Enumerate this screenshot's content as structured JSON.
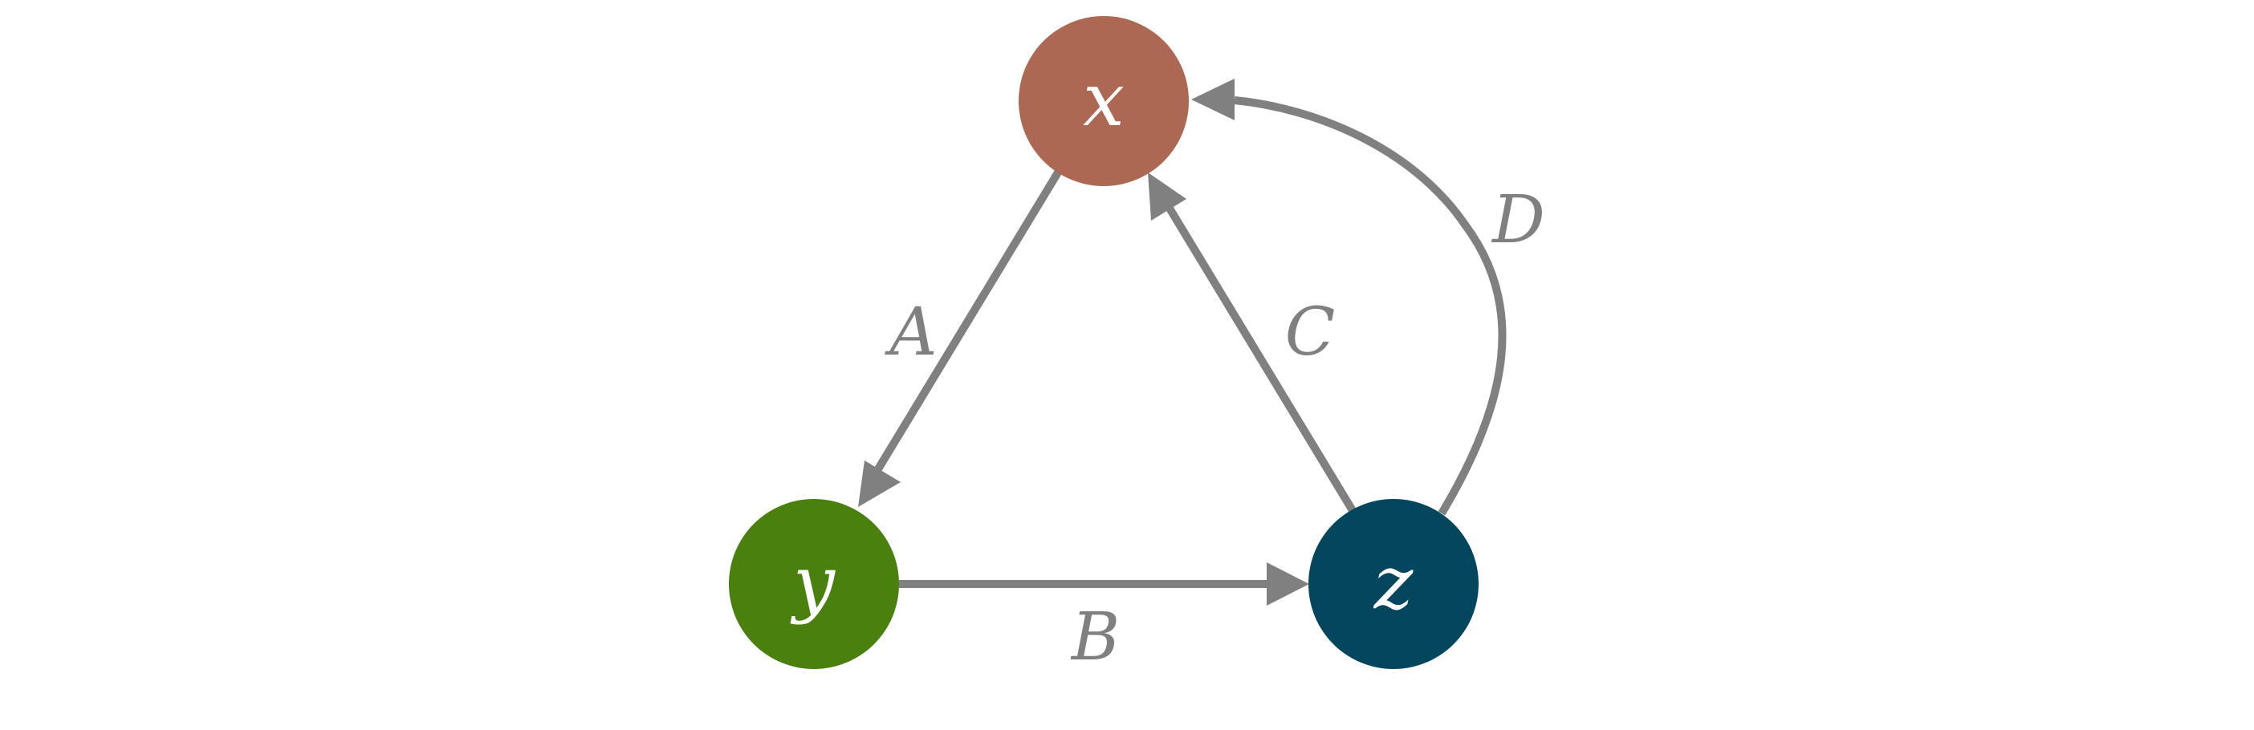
{
  "diagram": {
    "edge_color": "#808080",
    "nodes": [
      {
        "id": "x",
        "label": "x",
        "color": "#ad6853"
      },
      {
        "id": "y",
        "label": "y",
        "color": "#4a800e"
      },
      {
        "id": "z",
        "label": "z",
        "color": "#03465e"
      }
    ],
    "edges": [
      {
        "from": "x",
        "to": "y",
        "label": "A"
      },
      {
        "from": "y",
        "to": "z",
        "label": "B"
      },
      {
        "from": "z",
        "to": "x",
        "label": "C"
      },
      {
        "from": "z",
        "to": "x",
        "label": "D",
        "curved": true
      }
    ]
  }
}
